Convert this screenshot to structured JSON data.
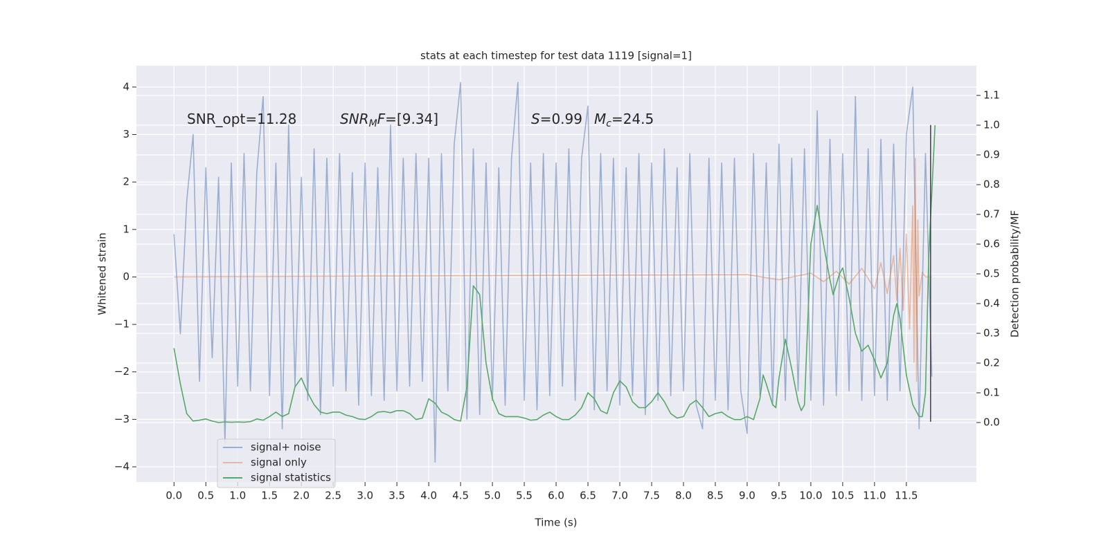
{
  "chart_data": {
    "type": "line",
    "title": "stats at each timestep for test data 1119 [signal=1]",
    "x_label": "Time (s)",
    "y_label": "Whitened strain",
    "y2_label": "Detection probability/MF",
    "annotations": [
      [
        "SNR_opt=11.28"
      ],
      [
        "SNR",
        "M",
        "F",
        "=[9.34]"
      ],
      [
        "S",
        "=0.99"
      ],
      [
        "M",
        "c",
        "=24.5"
      ]
    ],
    "xlim": [
      -0.59,
      12.6
    ],
    "ylim": [
      -4.32,
      4.45
    ],
    "y2lim": [
      -0.2,
      1.2
    ],
    "xticks": [
      {
        "value": 0,
        "label": "0.0"
      },
      {
        "value": 0.5,
        "label": "0.5"
      },
      {
        "value": 1,
        "label": "1.0"
      },
      {
        "value": 1.5,
        "label": "1.5"
      },
      {
        "value": 2,
        "label": "2.0"
      },
      {
        "value": 2.5,
        "label": "2.5"
      },
      {
        "value": 3,
        "label": "3.0"
      },
      {
        "value": 3.5,
        "label": "3.5"
      },
      {
        "value": 4,
        "label": "4.0"
      },
      {
        "value": 4.5,
        "label": "4.5"
      },
      {
        "value": 5,
        "label": "5.0"
      },
      {
        "value": 5.5,
        "label": "5.5"
      },
      {
        "value": 6,
        "label": "6.0"
      },
      {
        "value": 6.5,
        "label": "6.5"
      },
      {
        "value": 7,
        "label": "7.0"
      },
      {
        "value": 7.5,
        "label": "7.5"
      },
      {
        "value": 8,
        "label": "8.0"
      },
      {
        "value": 8.5,
        "label": "8.5"
      },
      {
        "value": 9,
        "label": "9.0"
      },
      {
        "value": 9.5,
        "label": "9.5"
      },
      {
        "value": 10,
        "label": "10.0"
      },
      {
        "value": 10.5,
        "label": "10.5"
      },
      {
        "value": 11,
        "label": "11.0"
      },
      {
        "value": 11.5,
        "label": "11.5"
      }
    ],
    "yticks": [
      {
        "value": -4,
        "label": "−4"
      },
      {
        "value": -3,
        "label": "−3"
      },
      {
        "value": -2,
        "label": "−2"
      },
      {
        "value": -1,
        "label": "−1"
      },
      0,
      1,
      2,
      3,
      4
    ],
    "y2ticks": [
      {
        "value": 0,
        "label": "0.0"
      },
      {
        "value": 0.1,
        "label": "0.1"
      },
      {
        "value": 0.2,
        "label": "0.2"
      },
      {
        "value": 0.3,
        "label": "0.3"
      },
      {
        "value": 0.4,
        "label": "0.4"
      },
      {
        "value": 0.5,
        "label": "0.5"
      },
      {
        "value": 0.6,
        "label": "0.6"
      },
      {
        "value": 0.7,
        "label": "0.7"
      },
      {
        "value": 0.8,
        "label": "0.8"
      },
      {
        "value": 0.9,
        "label": "0.9"
      },
      {
        "value": 1,
        "label": "1.0"
      },
      {
        "value": 1.1,
        "label": "1.1"
      }
    ],
    "grid": true,
    "legend": "lower left",
    "series": [
      {
        "name": "signal+ noise",
        "color": "#4c72b0",
        "alpha": 0.5,
        "x": [
          0,
          0.1,
          0.2,
          0.3,
          0.4,
          0.5,
          0.6,
          0.7,
          0.8,
          0.9,
          1,
          1.1,
          1.2,
          1.3,
          1.4,
          1.5,
          1.6,
          1.7,
          1.8,
          1.9,
          2,
          2.1,
          2.2,
          2.3,
          2.4,
          2.5,
          2.6,
          2.7,
          2.8,
          2.9,
          3,
          3.1,
          3.2,
          3.3,
          3.4,
          3.5,
          3.6,
          3.7,
          3.8,
          3.9,
          4,
          4.1,
          4.2,
          4.3,
          4.4,
          4.5,
          4.6,
          4.7,
          4.8,
          4.9,
          5,
          5.1,
          5.2,
          5.3,
          5.4,
          5.5,
          5.6,
          5.7,
          5.8,
          5.9,
          6,
          6.1,
          6.2,
          6.3,
          6.4,
          6.5,
          6.6,
          6.7,
          6.8,
          6.9,
          7,
          7.1,
          7.2,
          7.3,
          7.4,
          7.5,
          7.6,
          7.7,
          7.8,
          7.9,
          8,
          8.1,
          8.2,
          8.3,
          8.4,
          8.5,
          8.6,
          8.7,
          8.8,
          8.9,
          9,
          9.1,
          9.2,
          9.3,
          9.4,
          9.5,
          9.6,
          9.7,
          9.8,
          9.9,
          10,
          10.1,
          10.2,
          10.3,
          10.4,
          10.5,
          10.6,
          10.7,
          10.8,
          10.9,
          11,
          11.1,
          11.2,
          11.3,
          11.4,
          11.5,
          11.6,
          11.7,
          11.8,
          11.9
        ],
        "values": [
          0.9,
          -1.2,
          1.6,
          3.0,
          -2.2,
          2.3,
          -1.7,
          2.1,
          -3.5,
          2.4,
          -2.3,
          2.6,
          -2.4,
          2.2,
          3.8,
          -2.5,
          2.4,
          -3.2,
          3.2,
          -2.3,
          2.1,
          -2.6,
          2.7,
          -2.9,
          2.5,
          -2.3,
          2.6,
          -2.4,
          2.2,
          -2.7,
          2.4,
          -2.5,
          2.3,
          -2.6,
          3.2,
          -2.4,
          2.5,
          -2.3,
          2.6,
          -2.2,
          2.5,
          -3.9,
          2.6,
          -2.4,
          2.8,
          4.1,
          -3.0,
          2.7,
          -2.9,
          2.4,
          -2.6,
          2.3,
          -2.7,
          2.5,
          4.1,
          -2.6,
          2.4,
          -2.8,
          2.6,
          -2.5,
          2.4,
          -2.3,
          2.7,
          -2.6,
          2.5,
          3.6,
          -2.8,
          2.6,
          -2.4,
          2.5,
          -2.7,
          2.3,
          -2.5,
          2.6,
          -2.9,
          2.4,
          -2.6,
          2.7,
          -2.5,
          2.3,
          -2.4,
          2.6,
          -2.7,
          -3.2,
          2.5,
          -2.6,
          2.4,
          -2.8,
          2.5,
          -2.4,
          -3.3,
          2.6,
          -2.5,
          2.4,
          -2.7,
          2.8,
          -2.6,
          2.5,
          -2.4,
          2.7,
          -2.6,
          3.5,
          -2.7,
          2.9,
          -2.5,
          2.6,
          -2.4,
          3.8,
          -2.6,
          2.7,
          -2.5,
          2.9,
          -2.6,
          2.8,
          -2.4,
          3.0,
          4.0,
          -3.2,
          2.6,
          -2.1
        ]
      },
      {
        "name": "signal only",
        "color": "#dd8452",
        "alpha": 0.5,
        "x": [
          0,
          9.0,
          9.5,
          10.0,
          10.2,
          10.4,
          10.6,
          10.8,
          11.0,
          11.1,
          11.2,
          11.3,
          11.35,
          11.4,
          11.45,
          11.5,
          11.55,
          11.6,
          11.62,
          11.64,
          11.66,
          11.68,
          11.7,
          11.75,
          11.8,
          11.9
        ],
        "values": [
          0,
          0.05,
          -0.06,
          0.08,
          -0.1,
          0.12,
          -0.15,
          0.18,
          -0.25,
          0.3,
          -0.35,
          0.45,
          -0.5,
          0.6,
          -0.7,
          0.9,
          -1.1,
          1.5,
          -1.8,
          2.5,
          -2.2,
          1.2,
          -0.4,
          0.1,
          0,
          0
        ]
      },
      {
        "name": "signal statistics",
        "color": "#55a868",
        "alpha": 1,
        "axis": "y2",
        "x": [
          0,
          0.1,
          0.2,
          0.3,
          0.4,
          0.5,
          0.6,
          0.7,
          0.8,
          0.9,
          1,
          1.1,
          1.2,
          1.3,
          1.4,
          1.5,
          1.6,
          1.7,
          1.8,
          1.9,
          2,
          2.1,
          2.2,
          2.3,
          2.4,
          2.5,
          2.6,
          2.7,
          2.8,
          2.9,
          3,
          3.1,
          3.2,
          3.3,
          3.4,
          3.5,
          3.6,
          3.7,
          3.8,
          3.9,
          4,
          4.1,
          4.2,
          4.3,
          4.4,
          4.5,
          4.6,
          4.7,
          4.8,
          4.9,
          5,
          5.1,
          5.2,
          5.3,
          5.4,
          5.5,
          5.6,
          5.7,
          5.8,
          5.9,
          6,
          6.1,
          6.2,
          6.3,
          6.4,
          6.5,
          6.6,
          6.7,
          6.8,
          6.9,
          7,
          7.1,
          7.2,
          7.3,
          7.4,
          7.5,
          7.6,
          7.7,
          7.8,
          7.9,
          8,
          8.1,
          8.2,
          8.3,
          8.4,
          8.5,
          8.6,
          8.7,
          8.8,
          8.9,
          9.0,
          9.1,
          9.2,
          9.25,
          9.3,
          9.4,
          9.45,
          9.5,
          9.6,
          9.7,
          9.8,
          9.85,
          9.9,
          10.0,
          10.1,
          10.2,
          10.3,
          10.35,
          10.45,
          10.5,
          10.6,
          10.7,
          10.8,
          10.9,
          11.0,
          11.1,
          11.2,
          11.3,
          11.35,
          11.4,
          11.5,
          11.6,
          11.7,
          11.75,
          11.8,
          11.85,
          11.95
        ],
        "values": [
          0.25,
          0.13,
          0.03,
          0.005,
          0.008,
          0.012,
          0.005,
          0.0,
          0.002,
          0.001,
          0.002,
          0.001,
          0.003,
          0.012,
          0.008,
          0.02,
          0.035,
          0.02,
          0.03,
          0.12,
          0.15,
          0.1,
          0.06,
          0.035,
          0.03,
          0.035,
          0.035,
          0.025,
          0.02,
          0.012,
          0.01,
          0.02,
          0.035,
          0.037,
          0.033,
          0.04,
          0.04,
          0.03,
          0.01,
          0.015,
          0.08,
          0.065,
          0.035,
          0.025,
          0.01,
          0.005,
          0.12,
          0.46,
          0.43,
          0.2,
          0.08,
          0.03,
          0.02,
          0.02,
          0.02,
          0.015,
          0.008,
          0.01,
          0.025,
          0.035,
          0.02,
          0.01,
          0.01,
          0.025,
          0.05,
          0.1,
          0.08,
          0.04,
          0.03,
          0.1,
          0.14,
          0.12,
          0.07,
          0.05,
          0.05,
          0.07,
          0.1,
          0.07,
          0.03,
          0.015,
          0.02,
          0.06,
          0.075,
          0.05,
          0.02,
          0.03,
          0.035,
          0.02,
          0.01,
          0.01,
          0.02,
          0.01,
          0.08,
          0.16,
          0.13,
          0.06,
          0.05,
          0.15,
          0.28,
          0.18,
          0.07,
          0.04,
          0.06,
          0.6,
          0.73,
          0.6,
          0.48,
          0.43,
          0.5,
          0.52,
          0.42,
          0.3,
          0.24,
          0.26,
          0.21,
          0.15,
          0.2,
          0.36,
          0.4,
          0.35,
          0.16,
          0.06,
          0.02,
          0.02,
          0.1,
          0.55,
          1.0
        ]
      }
    ],
    "vline": {
      "x": 11.88,
      "ymin": -3.05,
      "ymax": 3.2,
      "color": "#404040"
    }
  }
}
